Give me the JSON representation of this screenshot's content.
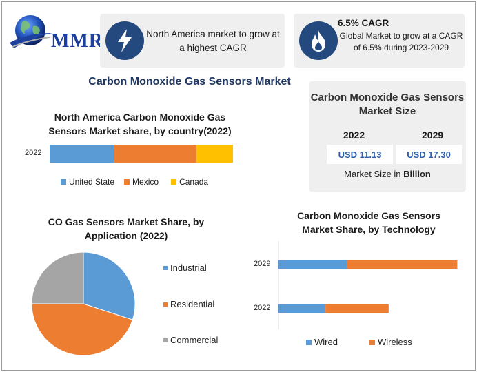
{
  "brand": {
    "logo_text": "MMR"
  },
  "highlights": {
    "card1": {
      "text": "North America market to grow at a highest CAGR",
      "icon": "lightning-icon"
    },
    "card2": {
      "title": "6.5% CAGR",
      "text": "Global Market to grow at a CAGR of 6.5% during 2023-2029",
      "icon": "flame-icon"
    }
  },
  "main_title": "Carbon Monoxide Gas Sensors Market",
  "market_size": {
    "title": "Carbon Monoxide Gas Sensors Market Size",
    "years": [
      {
        "year": "2022",
        "value": "USD 11.13"
      },
      {
        "year": "2029",
        "value": "USD 17.30"
      }
    ],
    "note_prefix": "Market Size in ",
    "note_bold": "Billion"
  },
  "colors": {
    "blue": "#5b9bd5",
    "orange": "#ed7d31",
    "yellow": "#ffc000",
    "gray": "#a5a5a5",
    "navy": "#24497e"
  },
  "chart_data": [
    {
      "type": "bar",
      "orientation": "horizontal",
      "stacked": true,
      "title": "North America Carbon Monoxide Gas Sensors Market share, by country(2022)",
      "categories": [
        "2022"
      ],
      "series": [
        {
          "name": "United State",
          "values": [
            35
          ]
        },
        {
          "name": "Mexico",
          "values": [
            45
          ]
        },
        {
          "name": "Canada",
          "values": [
            20
          ]
        }
      ],
      "legend": "bottom"
    },
    {
      "type": "pie",
      "title": "CO Gas Sensors Market Share, by Application (2022)",
      "labels": [
        "Industrial",
        "Residential",
        "Commercial"
      ],
      "values": [
        30,
        45,
        25
      ],
      "legend": "right"
    },
    {
      "type": "bar",
      "orientation": "horizontal",
      "stacked": true,
      "title": "Carbon Monoxide Gas Sensors Market Share, by Technology",
      "categories": [
        "2029",
        "2022"
      ],
      "series": [
        {
          "name": "Wired",
          "values": [
            38,
            26
          ]
        },
        {
          "name": "Wireless",
          "values": [
            61,
            35
          ]
        }
      ],
      "xlim": [
        0,
        100
      ],
      "legend": "bottom"
    }
  ]
}
